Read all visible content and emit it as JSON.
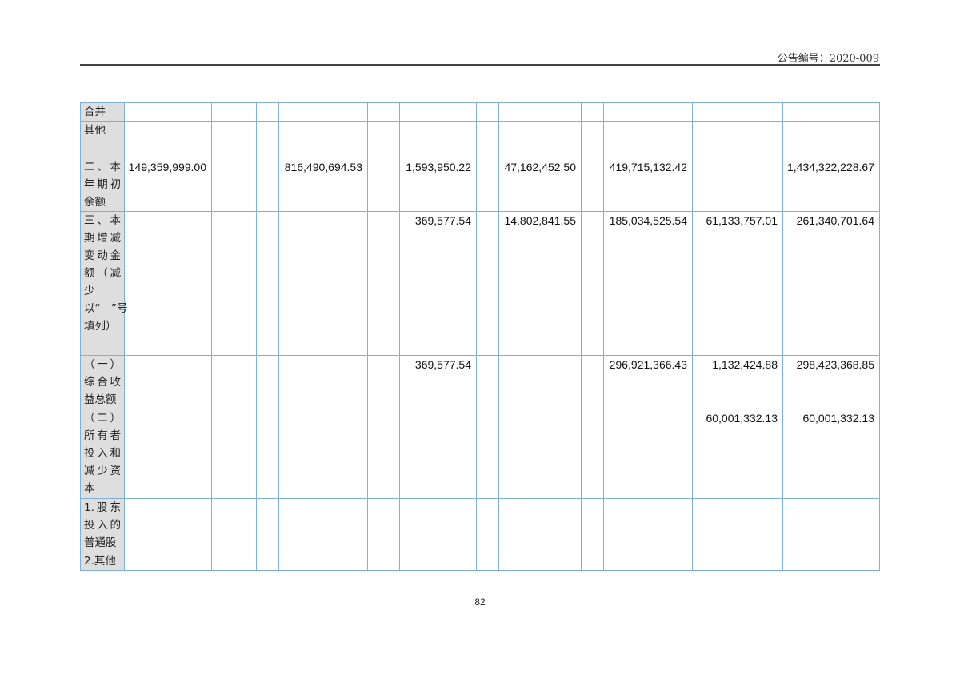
{
  "header": {
    "announcement_no": "公告编号：2020-009"
  },
  "table": {
    "rows": [
      {
        "label": "合并",
        "values": [
          "",
          "",
          "",
          "",
          "",
          "",
          "",
          "",
          "",
          "",
          "",
          "",
          ""
        ]
      },
      {
        "label": "其他",
        "values": [
          "",
          "",
          "",
          "",
          "",
          "",
          "",
          "",
          "",
          "",
          "",
          "",
          ""
        ]
      },
      {
        "label": "二、本年期初余额",
        "values": [
          "149,359,999.00",
          "",
          "",
          "",
          "816,490,694.53",
          "",
          "1,593,950.22",
          "",
          "47,162,452.50",
          "",
          "419,715,132.42",
          "",
          "1,434,322,228.67"
        ]
      },
      {
        "label": "三、本期增减变动金额（减少以“—”号填列）",
        "values": [
          "",
          "",
          "",
          "",
          "",
          "",
          "369,577.54",
          "",
          "14,802,841.55",
          "",
          "185,034,525.54",
          "61,133,757.01",
          "261,340,701.64"
        ]
      },
      {
        "label": "（一）综合收益总额",
        "values": [
          "",
          "",
          "",
          "",
          "",
          "",
          "369,577.54",
          "",
          "",
          "",
          "296,921,366.43",
          "1,132,424.88",
          "298,423,368.85"
        ]
      },
      {
        "label": "（二）所有者投入和减少资本",
        "values": [
          "",
          "",
          "",
          "",
          "",
          "",
          "",
          "",
          "",
          "",
          "",
          "60,001,332.13",
          "60,001,332.13"
        ]
      },
      {
        "label": "1.股东投入的普通股",
        "values": [
          "",
          "",
          "",
          "",
          "",
          "",
          "",
          "",
          "",
          "",
          "",
          "",
          ""
        ]
      },
      {
        "label": "2.其他",
        "values": [
          "",
          "",
          "",
          "",
          "",
          "",
          "",
          "",
          "",
          "",
          "",
          "",
          ""
        ]
      }
    ]
  },
  "footer": {
    "page_number": "82"
  }
}
